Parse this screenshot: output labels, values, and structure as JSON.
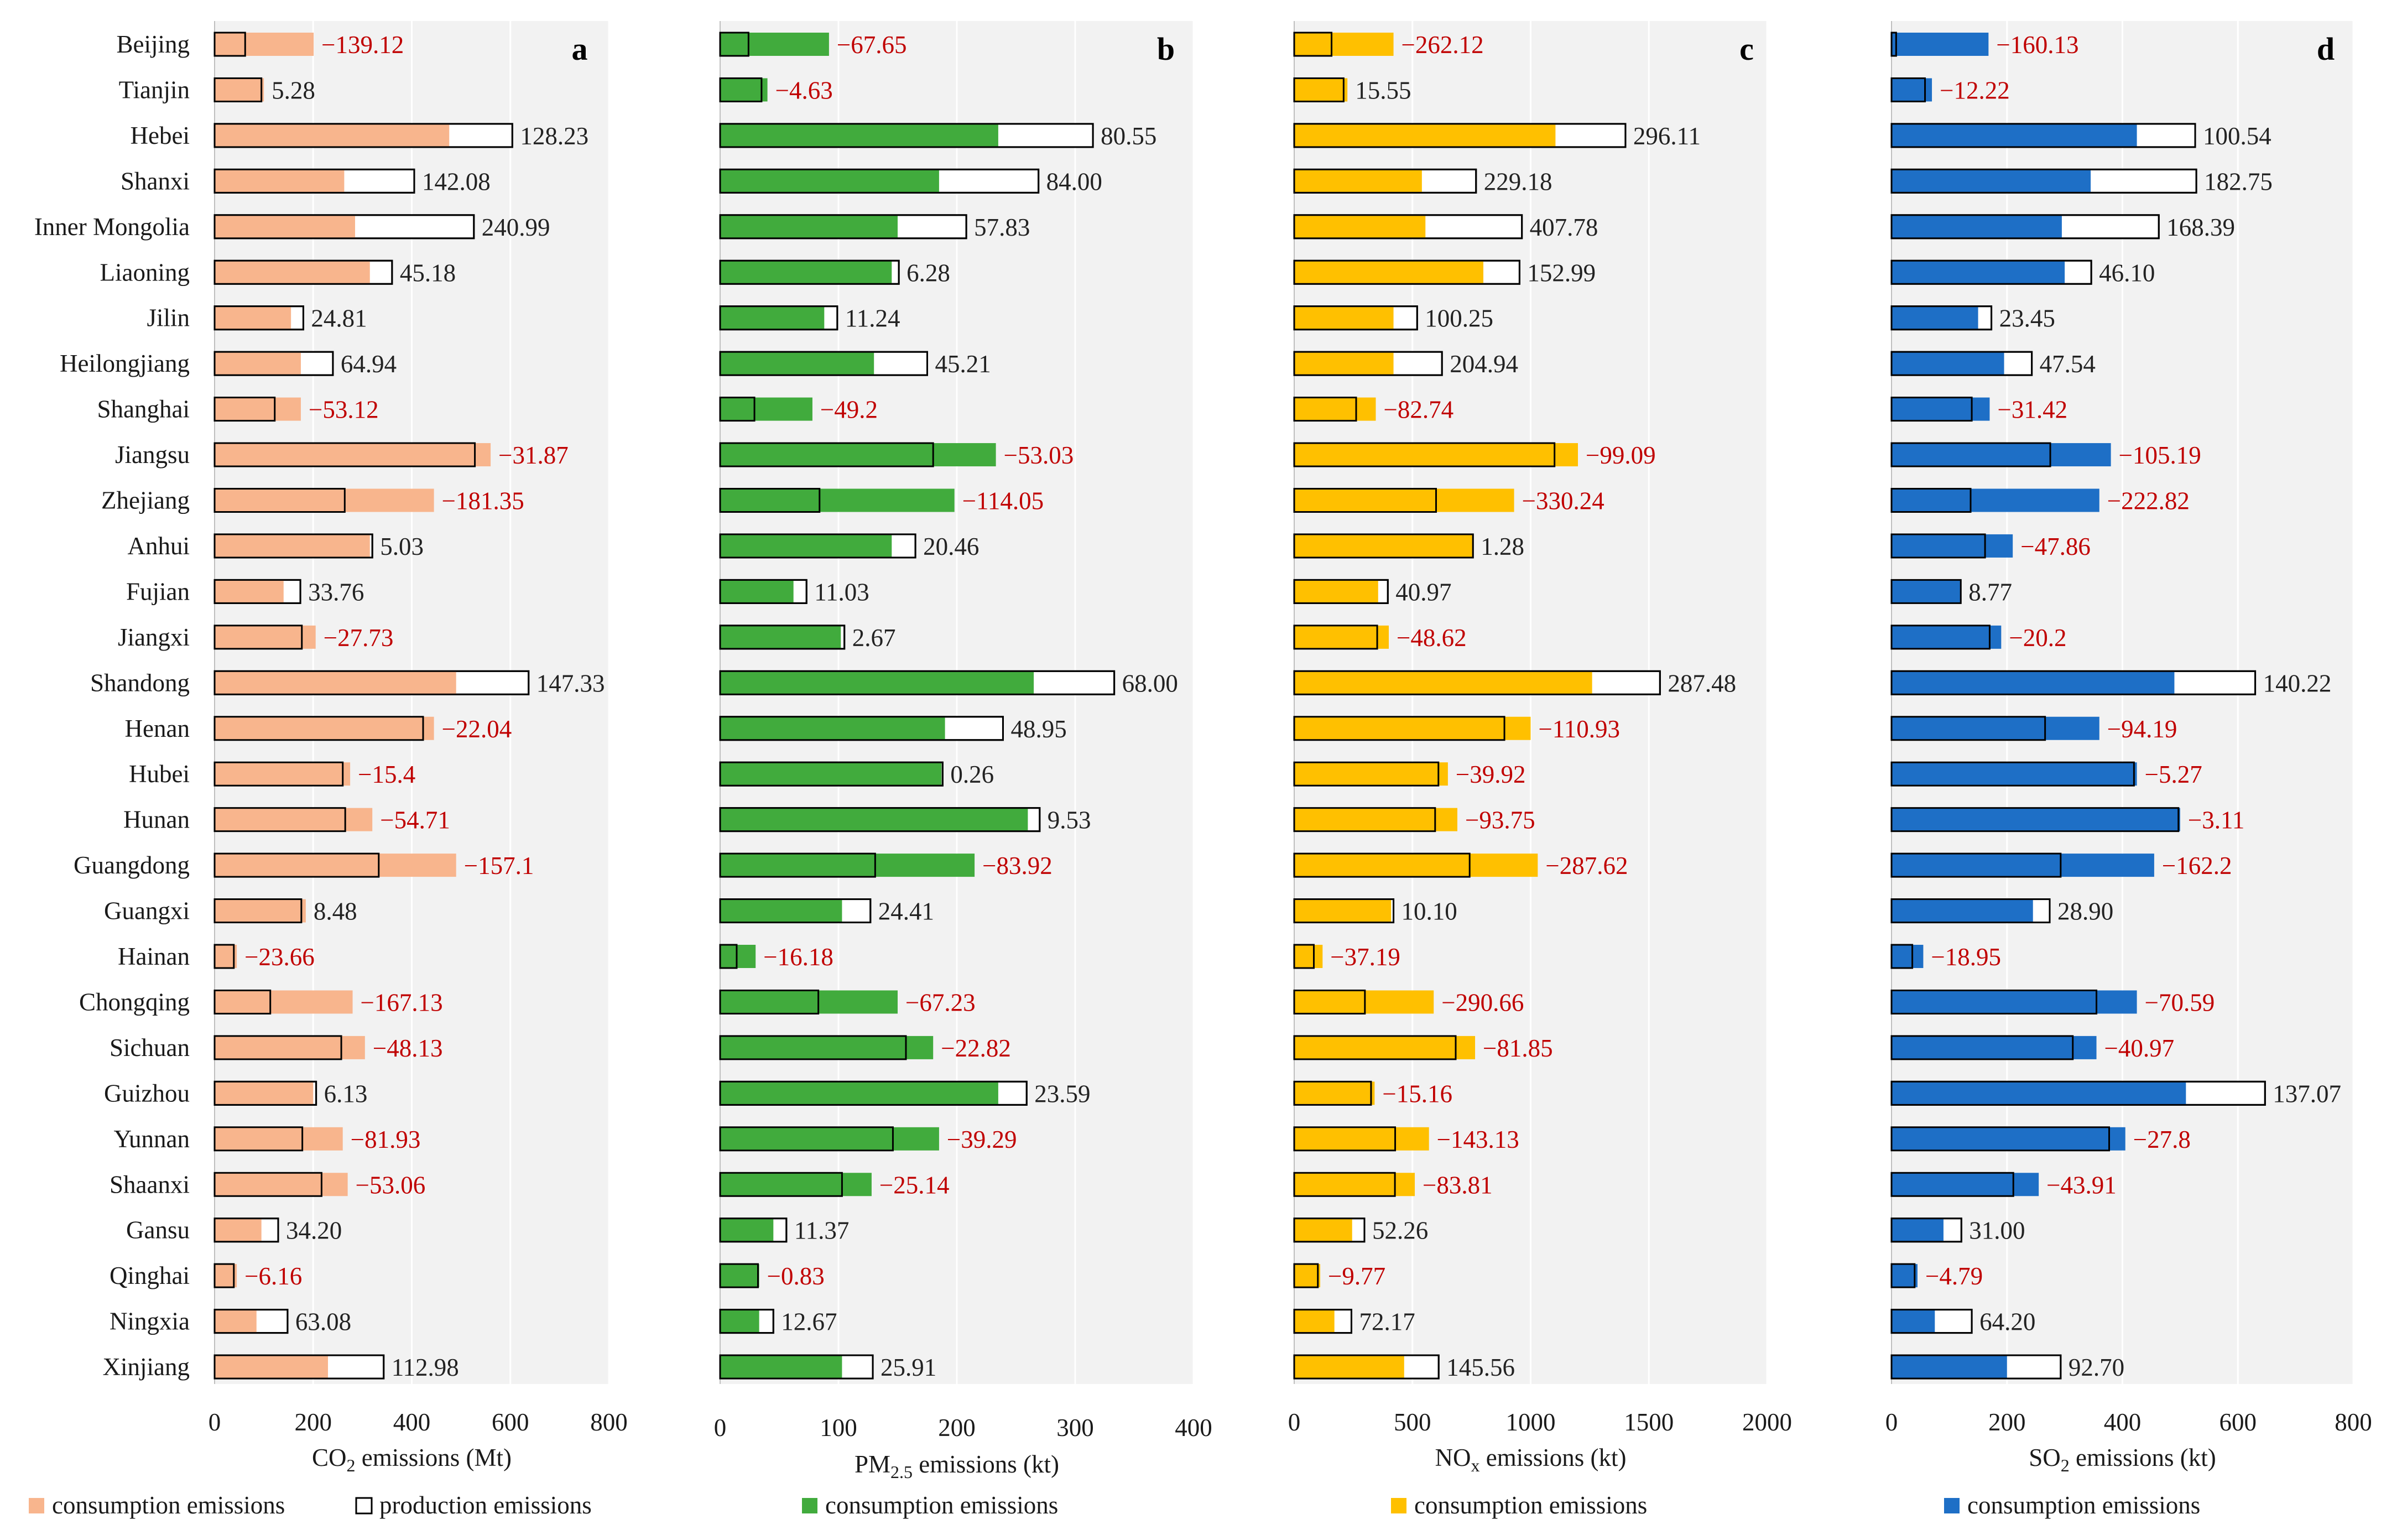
{
  "provinces": [
    "Beijing",
    "Tianjin",
    "Hebei",
    "Shanxi",
    "Inner Mongolia",
    "Liaoning",
    "Jilin",
    "Heilongjiang",
    "Shanghai",
    "Jiangsu",
    "Zhejiang",
    "Anhui",
    "Fujian",
    "Jiangxi",
    "Shandong",
    "Henan",
    "Hubei",
    "Hunan",
    "Guangdong",
    "Guangxi",
    "Hainan",
    "Chongqing",
    "Sichuan",
    "Guizhou",
    "Yunnan",
    "Shaanxi",
    "Gansu",
    "Qinghai",
    "Ningxia",
    "Xinjiang"
  ],
  "colors": {
    "negative_label": "#c00000",
    "positive_label": "#222222",
    "plot_background": "#f2f2f2",
    "grid": "#ffffff",
    "production_fill": "#ffffff",
    "bar_edge": "#000000"
  },
  "chart_data": [
    {
      "type": "bar",
      "panel": "a",
      "orientation": "horizontal",
      "xlabel": "CO₂ emissions (Mt)",
      "xlim": [
        0,
        800
      ],
      "xticks": [
        0,
        200,
        400,
        600,
        800
      ],
      "xtick_labels": [
        "0",
        "200",
        "400",
        "600",
        "800"
      ],
      "grid": true,
      "color": "#f8b58d",
      "legend": [
        {
          "label": "consumption emissions",
          "swatch": "consumption"
        },
        {
          "label": "production emissions",
          "swatch": "production"
        }
      ],
      "consumption": [
        201,
        100,
        476,
        263,
        285,
        315,
        155,
        175,
        175,
        560,
        445,
        315,
        140,
        205,
        490,
        445,
        275,
        320,
        490,
        185,
        45,
        280,
        305,
        200,
        260,
        270,
        95,
        45,
        85,
        230
      ],
      "production": [
        62,
        95,
        604,
        405,
        526,
        360,
        180,
        240,
        122,
        528,
        264,
        320,
        174,
        177,
        637,
        423,
        260,
        265,
        333,
        176,
        39,
        113,
        257,
        206,
        178,
        217,
        129,
        39,
        148,
        343
      ],
      "net_values": [
        -139.12,
        5.28,
        128.23,
        142.08,
        240.99,
        45.18,
        24.81,
        64.94,
        -53.12,
        -31.87,
        -181.35,
        5.03,
        33.76,
        -27.73,
        147.33,
        -22.04,
        -15.4,
        -54.71,
        -157.1,
        8.48,
        -23.66,
        -167.13,
        -48.13,
        6.13,
        -81.93,
        -53.06,
        34.2,
        -6.16,
        63.08,
        112.98
      ],
      "labels": [
        "−139.12",
        "5.28",
        "128.23",
        "142.08",
        "240.99",
        "45.18",
        "24.81",
        "64.94",
        "−53.12",
        "−31.87",
        "−181.35",
        "5.03",
        "33.76",
        "−27.73",
        "147.33",
        "−22.04",
        "−15.4",
        "−54.71",
        "−157.1",
        "8.48",
        "−23.66",
        "−167.13",
        "−48.13",
        "6.13",
        "−81.93",
        "−53.06",
        "34.20",
        "−6.16",
        "63.08",
        "112.98"
      ]
    },
    {
      "type": "bar",
      "panel": "b",
      "orientation": "horizontal",
      "xlabel_main": "PM",
      "xlabel_sub": "2.5",
      "xlabel_tail": " emissions (kt)",
      "xlim": [
        0,
        400
      ],
      "xticks": [
        0,
        100,
        200,
        300,
        400
      ],
      "xtick_labels": [
        "0",
        "100",
        "200",
        "300",
        "400"
      ],
      "grid": true,
      "color": "#41ab3d",
      "legend": [
        {
          "label": "consumption emissions",
          "swatch": "consumption"
        }
      ],
      "consumption": [
        92,
        40,
        235,
        185,
        150,
        145,
        88,
        130,
        78,
        233,
        198,
        145,
        62,
        102,
        265,
        190,
        187,
        260,
        215,
        103,
        30,
        150,
        180,
        235,
        185,
        128,
        45,
        33,
        33,
        103
      ],
      "production": [
        24,
        35,
        315,
        269,
        208,
        151,
        99,
        175,
        29,
        180,
        84,
        165,
        73,
        105,
        333,
        239,
        188,
        270,
        131,
        127,
        14,
        83,
        157,
        259,
        146,
        103,
        56,
        32,
        45,
        129
      ],
      "net_values": [
        -67.65,
        -4.63,
        80.55,
        84.0,
        57.83,
        6.28,
        11.24,
        45.21,
        -49.2,
        -53.03,
        -114.05,
        20.46,
        11.03,
        2.67,
        68.0,
        48.95,
        0.26,
        9.53,
        -83.92,
        24.41,
        -16.18,
        -67.23,
        -22.82,
        23.59,
        -39.29,
        -25.14,
        11.37,
        -0.83,
        12.67,
        25.91
      ],
      "labels": [
        "−67.65",
        "−4.63",
        "80.55",
        "84.00",
        "57.83",
        "6.28",
        "11.24",
        "45.21",
        "−49.2",
        "−53.03",
        "−114.05",
        "20.46",
        "11.03",
        "2.67",
        "68.00",
        "48.95",
        "0.26",
        "9.53",
        "−83.92",
        "24.41",
        "−16.18",
        "−67.23",
        "−22.82",
        "23.59",
        "−39.29",
        "−25.14",
        "11.37",
        "−0.83",
        "12.67",
        "25.91"
      ]
    },
    {
      "type": "bar",
      "panel": "c",
      "orientation": "horizontal",
      "xlabel_main": "NO",
      "xlabel_sub": "x",
      "xlabel_tail": " emissions (kt)",
      "xlim": [
        0,
        2000
      ],
      "xticks": [
        0,
        500,
        1000,
        1500,
        2000
      ],
      "xtick_labels": [
        "0",
        "500",
        "1000",
        "1500",
        "2000"
      ],
      "grid": true,
      "color": "#ffc000",
      "legend": [
        {
          "label": "consumption emissions",
          "swatch": "consumption"
        }
      ],
      "consumption": [
        420,
        225,
        1105,
        540,
        555,
        800,
        420,
        420,
        345,
        1200,
        930,
        755,
        355,
        400,
        1260,
        1000,
        650,
        690,
        1030,
        410,
        120,
        590,
        765,
        340,
        570,
        510,
        245,
        110,
        170,
        465
      ],
      "production": [
        158,
        209,
        1401,
        769,
        963,
        953,
        520,
        625,
        262,
        1101,
        600,
        756,
        396,
        351,
        1547,
        889,
        610,
        596,
        742,
        420,
        83,
        299,
        683,
        325,
        427,
        426,
        297,
        100,
        242,
        611
      ],
      "net_values": [
        -262.12,
        15.55,
        296.11,
        229.18,
        407.78,
        152.99,
        100.25,
        204.94,
        -82.74,
        -99.09,
        -330.24,
        1.28,
        40.97,
        -48.62,
        287.48,
        -110.93,
        -39.92,
        -93.75,
        -287.62,
        10.1,
        -37.19,
        -290.66,
        -81.85,
        -15.16,
        -143.13,
        -83.81,
        52.26,
        -9.77,
        72.17,
        145.56
      ],
      "labels": [
        "−262.12",
        "15.55",
        "296.11",
        "229.18",
        "407.78",
        "152.99",
        "100.25",
        "204.94",
        "−82.74",
        "−99.09",
        "−330.24",
        "1.28",
        "40.97",
        "−48.62",
        "287.48",
        "−110.93",
        "−39.92",
        "−93.75",
        "−287.62",
        "10.10",
        "−37.19",
        "−290.66",
        "−81.85",
        "−15.16",
        "−143.13",
        "−83.81",
        "52.26",
        "−9.77",
        "72.17",
        "145.56"
      ]
    },
    {
      "type": "bar",
      "panel": "d",
      "orientation": "horizontal",
      "xlabel_main": "SO",
      "xlabel_sub": "2",
      "xlabel_tail": " emissions (kt)",
      "xlim": [
        0,
        800
      ],
      "xticks": [
        0,
        200,
        400,
        600,
        800
      ],
      "xtick_labels": [
        "0",
        "200",
        "400",
        "600",
        "800"
      ],
      "grid": true,
      "color": "#1e6fc6",
      "legend": [
        {
          "label": "consumption emissions",
          "swatch": "consumption"
        }
      ],
      "consumption": [
        168,
        70,
        425,
        345,
        295,
        300,
        150,
        195,
        170,
        380,
        360,
        210,
        120,
        190,
        490,
        360,
        425,
        500,
        455,
        245,
        55,
        425,
        355,
        510,
        405,
        255,
        90,
        45,
        75,
        200
      ],
      "production": [
        8,
        58,
        526,
        528,
        463,
        346,
        173,
        243,
        139,
        275,
        137,
        162,
        120,
        170,
        630,
        266,
        420,
        497,
        293,
        274,
        36,
        355,
        314,
        647,
        377,
        211,
        121,
        40,
        139,
        293
      ],
      "net_values": [
        -160.13,
        -12.22,
        100.54,
        182.75,
        168.39,
        46.1,
        23.45,
        47.54,
        -31.42,
        -105.19,
        -222.82,
        -47.86,
        8.77,
        -20.2,
        140.22,
        -94.19,
        -5.27,
        -3.11,
        -162.2,
        28.9,
        -18.95,
        -70.59,
        -40.97,
        137.07,
        -27.8,
        -43.91,
        31.0,
        -4.79,
        64.2,
        92.7
      ],
      "labels": [
        "−160.13",
        "−12.22",
        "100.54",
        "182.75",
        "168.39",
        "46.10",
        "23.45",
        "47.54",
        "−31.42",
        "−105.19",
        "−222.82",
        "−47.86",
        "8.77",
        "−20.2",
        "140.22",
        "−94.19",
        "−5.27",
        "−3.11",
        "−162.2",
        "28.90",
        "−18.95",
        "−70.59",
        "−40.97",
        "137.07",
        "−27.8",
        "−43.91",
        "31.00",
        "−4.79",
        "64.20",
        "92.70"
      ]
    }
  ]
}
